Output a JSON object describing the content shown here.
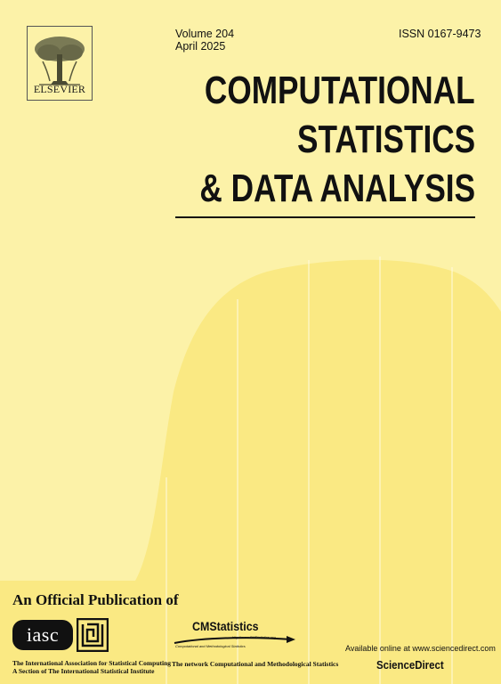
{
  "cover": {
    "colors": {
      "background": "#fcf2a8",
      "wave": "#fae983",
      "text": "#111111"
    }
  },
  "publisher": {
    "name": "ELSEVIER",
    "logo_icon": "elsevier-tree-icon"
  },
  "issue": {
    "volume": "Volume 204",
    "date": "April 2025",
    "issn": "ISSN 0167-9473"
  },
  "journal": {
    "title_lines": [
      "COMPUTATIONAL",
      "STATISTICS",
      "& DATA ANALYSIS"
    ]
  },
  "footer": {
    "heading": "An Official Publication of",
    "iasc": {
      "logo_text": "iasc",
      "name": "The International Association for Statistical Computing",
      "section": "A Section of The International Statistical Institute"
    },
    "isi_logo_icon": "isi-logo-icon",
    "cmstatistics": {
      "logo_text": "CMStatistics",
      "url": "http://www.CMStatistics.org",
      "tagline": "Computational and Methodological Statistics",
      "network": "The network Computational and Methodological Statistics"
    },
    "online": {
      "text": "Available online at www.sciencedirect.com",
      "platform": "ScienceDirect"
    }
  }
}
